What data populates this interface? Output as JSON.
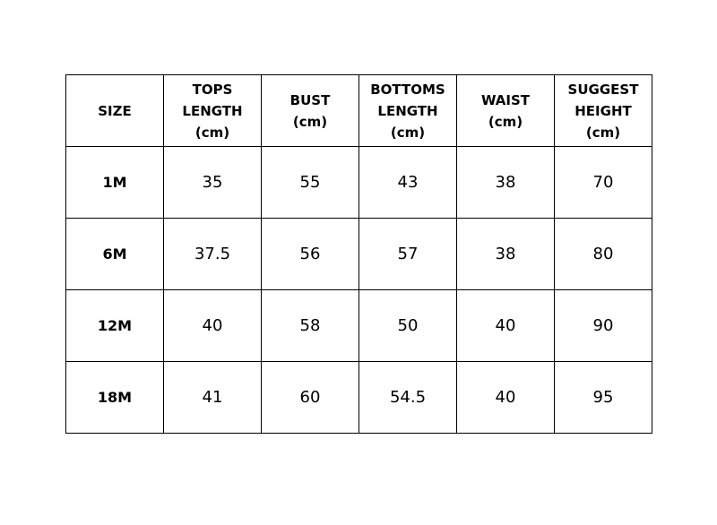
{
  "table": {
    "headers": [
      [
        "SIZE"
      ],
      [
        "TOPS",
        "LENGTH",
        "(cm)"
      ],
      [
        "BUST",
        "(cm)"
      ],
      [
        "BOTTOMS",
        "LENGTH",
        "(cm)"
      ],
      [
        "WAIST",
        "(cm)"
      ],
      [
        "SUGGEST",
        "HEIGHT",
        "(cm)"
      ]
    ],
    "rows": [
      [
        "1M",
        "35",
        "55",
        "43",
        "38",
        "70"
      ],
      [
        "6M",
        "37.5",
        "56",
        "57",
        "38",
        "80"
      ],
      [
        "12M",
        "40",
        "58",
        "50",
        "40",
        "90"
      ],
      [
        "18M",
        "41",
        "60",
        "54.5",
        "40",
        "95"
      ]
    ]
  }
}
